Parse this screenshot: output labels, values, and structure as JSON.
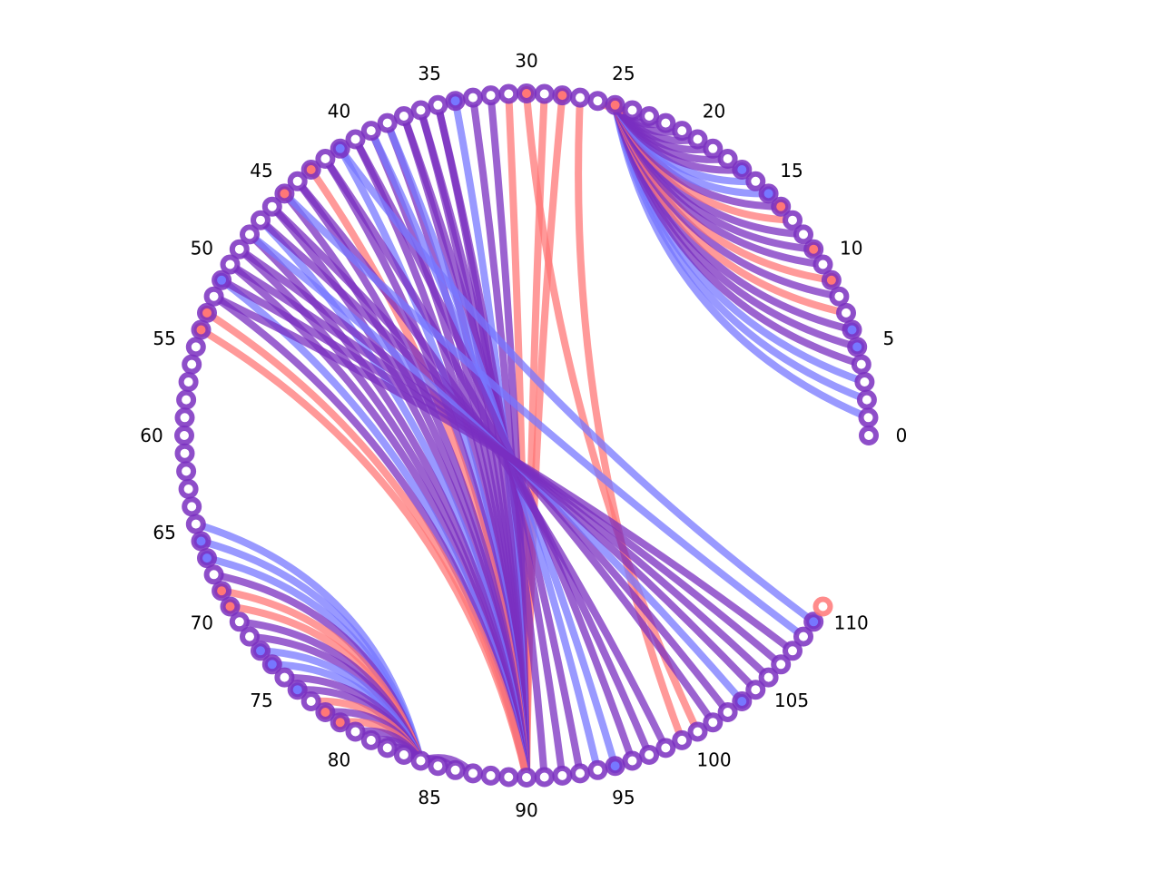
{
  "diagram": {
    "type": "chord-arc",
    "node_count": 111,
    "label_step": 5,
    "tick_labels": [
      "0",
      "5",
      "10",
      "15",
      "20",
      "25",
      "30",
      "35",
      "40",
      "45",
      "50",
      "55",
      "60",
      "65",
      "70",
      "75",
      "80",
      "85",
      "90",
      "95",
      "100",
      "105",
      "110"
    ],
    "colors": {
      "purple": "#7a2fc0",
      "blue": "#7777ff",
      "red": "#ff7777"
    },
    "node_colors": {
      "red": [
        9,
        11,
        14,
        25,
        28,
        30,
        43,
        45,
        53,
        54,
        69,
        70,
        78,
        79,
        110
      ],
      "blue": [
        5,
        6,
        15,
        17,
        34,
        41,
        51,
        66,
        67,
        73,
        74,
        76,
        95,
        103,
        109
      ]
    },
    "chords": [
      {
        "a": 1,
        "b": 25,
        "color": "blue"
      },
      {
        "a": 2,
        "b": 25,
        "color": "blue"
      },
      {
        "a": 3,
        "b": 25,
        "color": "blue"
      },
      {
        "a": 4,
        "b": 25,
        "color": "purple"
      },
      {
        "a": 5,
        "b": 25,
        "color": "purple"
      },
      {
        "a": 6,
        "b": 25,
        "color": "purple"
      },
      {
        "a": 7,
        "b": 25,
        "color": "red"
      },
      {
        "a": 8,
        "b": 25,
        "color": "purple"
      },
      {
        "a": 9,
        "b": 25,
        "color": "red"
      },
      {
        "a": 10,
        "b": 25,
        "color": "purple"
      },
      {
        "a": 11,
        "b": 25,
        "color": "purple"
      },
      {
        "a": 12,
        "b": 25,
        "color": "purple"
      },
      {
        "a": 13,
        "b": 25,
        "color": "red"
      },
      {
        "a": 14,
        "b": 25,
        "color": "purple"
      },
      {
        "a": 15,
        "b": 25,
        "color": "blue"
      },
      {
        "a": 16,
        "b": 25,
        "color": "blue"
      },
      {
        "a": 17,
        "b": 25,
        "color": "purple"
      },
      {
        "a": 18,
        "b": 25,
        "color": "purple"
      },
      {
        "a": 19,
        "b": 25,
        "color": "purple"
      },
      {
        "a": 20,
        "b": 25,
        "color": "purple"
      },
      {
        "a": 21,
        "b": 25,
        "color": "purple"
      },
      {
        "a": 22,
        "b": 25,
        "color": "purple"
      },
      {
        "a": 23,
        "b": 25,
        "color": "purple"
      },
      {
        "a": 24,
        "b": 25,
        "color": "red"
      },
      {
        "a": 26,
        "b": 25,
        "color": "red"
      },
      {
        "a": 28,
        "b": 90,
        "color": "red"
      },
      {
        "a": 29,
        "b": 90,
        "color": "red"
      },
      {
        "a": 31,
        "b": 90,
        "color": "red"
      },
      {
        "a": 32,
        "b": 90,
        "color": "purple"
      },
      {
        "a": 33,
        "b": 90,
        "color": "purple"
      },
      {
        "a": 34,
        "b": 90,
        "color": "blue"
      },
      {
        "a": 35,
        "b": 90,
        "color": "purple"
      },
      {
        "a": 36,
        "b": 90,
        "color": "purple"
      },
      {
        "a": 37,
        "b": 90,
        "color": "purple"
      },
      {
        "a": 38,
        "b": 90,
        "color": "purple"
      },
      {
        "a": 39,
        "b": 90,
        "color": "purple"
      },
      {
        "a": 40,
        "b": 90,
        "color": "purple"
      },
      {
        "a": 41,
        "b": 90,
        "color": "blue"
      },
      {
        "a": 42,
        "b": 90,
        "color": "purple"
      },
      {
        "a": 43,
        "b": 90,
        "color": "red"
      },
      {
        "a": 44,
        "b": 90,
        "color": "purple"
      },
      {
        "a": 45,
        "b": 90,
        "color": "purple"
      },
      {
        "a": 46,
        "b": 90,
        "color": "purple"
      },
      {
        "a": 47,
        "b": 90,
        "color": "blue"
      },
      {
        "a": 48,
        "b": 90,
        "color": "purple"
      },
      {
        "a": 49,
        "b": 90,
        "color": "purple"
      },
      {
        "a": 50,
        "b": 90,
        "color": "purple"
      },
      {
        "a": 51,
        "b": 90,
        "color": "blue"
      },
      {
        "a": 52,
        "b": 90,
        "color": "purple"
      },
      {
        "a": 53,
        "b": 90,
        "color": "red"
      },
      {
        "a": 54,
        "b": 90,
        "color": "red"
      },
      {
        "a": 65,
        "b": 84,
        "color": "blue"
      },
      {
        "a": 66,
        "b": 84,
        "color": "blue"
      },
      {
        "a": 67,
        "b": 84,
        "color": "blue"
      },
      {
        "a": 68,
        "b": 84,
        "color": "purple"
      },
      {
        "a": 69,
        "b": 84,
        "color": "red"
      },
      {
        "a": 70,
        "b": 84,
        "color": "red"
      },
      {
        "a": 71,
        "b": 84,
        "color": "purple"
      },
      {
        "a": 72,
        "b": 84,
        "color": "purple"
      },
      {
        "a": 73,
        "b": 84,
        "color": "blue"
      },
      {
        "a": 74,
        "b": 84,
        "color": "blue"
      },
      {
        "a": 75,
        "b": 84,
        "color": "purple"
      },
      {
        "a": 76,
        "b": 84,
        "color": "purple"
      },
      {
        "a": 77,
        "b": 84,
        "color": "red"
      },
      {
        "a": 78,
        "b": 84,
        "color": "purple"
      },
      {
        "a": 79,
        "b": 84,
        "color": "red"
      },
      {
        "a": 80,
        "b": 84,
        "color": "purple"
      },
      {
        "a": 81,
        "b": 84,
        "color": "purple"
      },
      {
        "a": 82,
        "b": 84,
        "color": "purple"
      },
      {
        "a": 83,
        "b": 84,
        "color": "purple"
      },
      {
        "a": 86,
        "b": 84,
        "color": "purple"
      },
      {
        "a": 87,
        "b": 84,
        "color": "purple"
      },
      {
        "a": 27,
        "b": 99,
        "color": "red"
      },
      {
        "a": 30,
        "b": 100,
        "color": "red"
      },
      {
        "a": 91,
        "b": 35,
        "color": "purple"
      },
      {
        "a": 92,
        "b": 36,
        "color": "purple"
      },
      {
        "a": 93,
        "b": 37,
        "color": "purple"
      },
      {
        "a": 94,
        "b": 38,
        "color": "blue"
      },
      {
        "a": 95,
        "b": 39,
        "color": "blue"
      },
      {
        "a": 96,
        "b": 40,
        "color": "purple"
      },
      {
        "a": 97,
        "b": 42,
        "color": "purple"
      },
      {
        "a": 98,
        "b": 44,
        "color": "purple"
      },
      {
        "a": 101,
        "b": 46,
        "color": "purple"
      },
      {
        "a": 102,
        "b": 47,
        "color": "purple"
      },
      {
        "a": 103,
        "b": 48,
        "color": "blue"
      },
      {
        "a": 104,
        "b": 49,
        "color": "purple"
      },
      {
        "a": 105,
        "b": 50,
        "color": "purple"
      },
      {
        "a": 106,
        "b": 51,
        "color": "purple"
      },
      {
        "a": 107,
        "b": 52,
        "color": "purple"
      },
      {
        "a": 108,
        "b": 45,
        "color": "blue"
      },
      {
        "a": 109,
        "b": 41,
        "color": "blue"
      }
    ]
  }
}
